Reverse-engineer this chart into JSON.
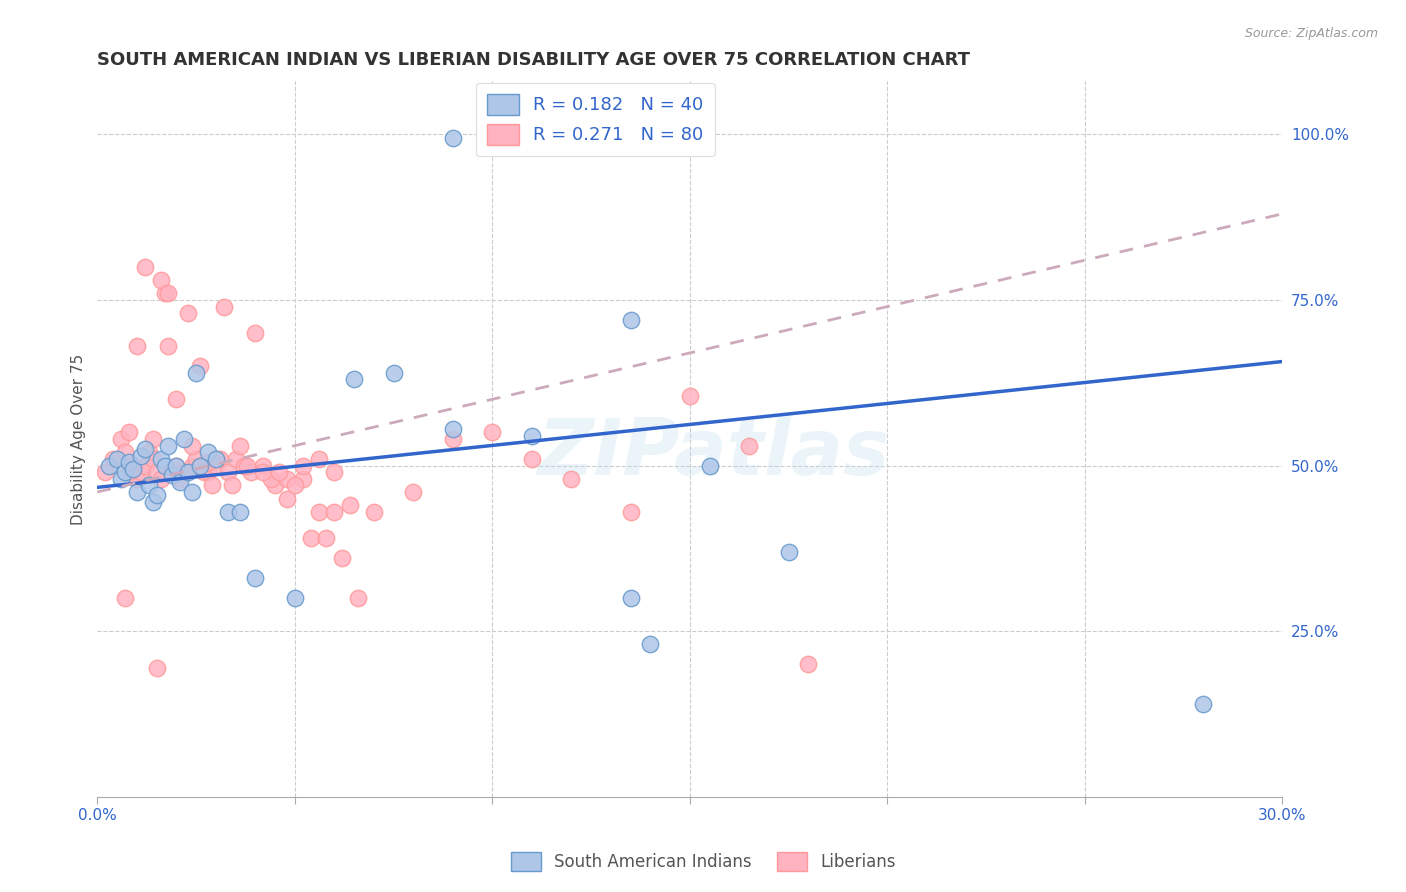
{
  "title": "SOUTH AMERICAN INDIAN VS LIBERIAN DISABILITY AGE OVER 75 CORRELATION CHART",
  "source": "Source: ZipAtlas.com",
  "ylabel": "Disability Age Over 75",
  "xlim": [
    0.0,
    0.3
  ],
  "ylim": [
    0.0,
    1.08
  ],
  "xticks": [
    0.0,
    0.05,
    0.1,
    0.15,
    0.2,
    0.25,
    0.3
  ],
  "ytick_labels_right": [
    "100.0%",
    "75.0%",
    "50.0%",
    "25.0%"
  ],
  "ytick_positions_right": [
    1.0,
    0.75,
    0.5,
    0.25
  ],
  "blue_color": "#6699CC",
  "blue_fill": "#aec6e8",
  "pink_color": "#FF9999",
  "pink_fill": "#FFB3C1",
  "trend_blue_color": "#3366CC",
  "trend_pink_color": "#ccaabb",
  "watermark": "ZIPatlas",
  "legend_label_blue": "South American Indians",
  "legend_label_pink": "Liberians",
  "blue_trend_x0": 0.0,
  "blue_trend_y0": 0.467,
  "blue_trend_x1": 0.3,
  "blue_trend_y1": 0.657,
  "pink_trend_x0": 0.0,
  "pink_trend_y0": 0.46,
  "pink_trend_x1": 0.3,
  "pink_trend_y1": 0.88,
  "blue_points_x": [
    0.003,
    0.005,
    0.006,
    0.007,
    0.008,
    0.009,
    0.01,
    0.011,
    0.012,
    0.013,
    0.014,
    0.015,
    0.016,
    0.017,
    0.018,
    0.019,
    0.02,
    0.021,
    0.022,
    0.023,
    0.024,
    0.025,
    0.026,
    0.028,
    0.03,
    0.033,
    0.036,
    0.04,
    0.05,
    0.065,
    0.075,
    0.09,
    0.11,
    0.135,
    0.155,
    0.175,
    0.135,
    0.28,
    0.14,
    0.09
  ],
  "blue_points_y": [
    0.5,
    0.51,
    0.48,
    0.49,
    0.505,
    0.495,
    0.46,
    0.515,
    0.525,
    0.47,
    0.445,
    0.455,
    0.51,
    0.5,
    0.53,
    0.485,
    0.5,
    0.475,
    0.54,
    0.49,
    0.46,
    0.64,
    0.5,
    0.52,
    0.51,
    0.43,
    0.43,
    0.33,
    0.3,
    0.63,
    0.64,
    0.555,
    0.545,
    0.3,
    0.5,
    0.37,
    0.72,
    0.14,
    0.23,
    0.995
  ],
  "pink_points_x": [
    0.002,
    0.004,
    0.006,
    0.007,
    0.008,
    0.009,
    0.01,
    0.011,
    0.012,
    0.013,
    0.014,
    0.015,
    0.016,
    0.017,
    0.018,
    0.019,
    0.02,
    0.021,
    0.022,
    0.023,
    0.024,
    0.025,
    0.026,
    0.027,
    0.028,
    0.029,
    0.03,
    0.031,
    0.033,
    0.035,
    0.037,
    0.039,
    0.042,
    0.045,
    0.048,
    0.052,
    0.056,
    0.06,
    0.07,
    0.08,
    0.09,
    0.1,
    0.11,
    0.12,
    0.135,
    0.15,
    0.165,
    0.18,
    0.008,
    0.012,
    0.016,
    0.02,
    0.024,
    0.028,
    0.032,
    0.036,
    0.04,
    0.044,
    0.048,
    0.052,
    0.056,
    0.06,
    0.064,
    0.01,
    0.014,
    0.018,
    0.022,
    0.026,
    0.03,
    0.034,
    0.038,
    0.042,
    0.046,
    0.05,
    0.054,
    0.058,
    0.062,
    0.066,
    0.007,
    0.015
  ],
  "pink_points_y": [
    0.49,
    0.51,
    0.54,
    0.52,
    0.55,
    0.5,
    0.48,
    0.49,
    0.5,
    0.52,
    0.51,
    0.49,
    0.48,
    0.76,
    0.68,
    0.49,
    0.5,
    0.48,
    0.49,
    0.73,
    0.5,
    0.51,
    0.5,
    0.49,
    0.49,
    0.47,
    0.5,
    0.51,
    0.49,
    0.51,
    0.5,
    0.49,
    0.5,
    0.47,
    0.45,
    0.48,
    0.51,
    0.49,
    0.43,
    0.46,
    0.54,
    0.55,
    0.51,
    0.48,
    0.43,
    0.605,
    0.53,
    0.2,
    0.49,
    0.8,
    0.78,
    0.6,
    0.53,
    0.505,
    0.74,
    0.53,
    0.7,
    0.48,
    0.48,
    0.5,
    0.43,
    0.43,
    0.44,
    0.68,
    0.54,
    0.76,
    0.49,
    0.65,
    0.51,
    0.47,
    0.5,
    0.49,
    0.49,
    0.47,
    0.39,
    0.39,
    0.36,
    0.3,
    0.3,
    0.195
  ]
}
